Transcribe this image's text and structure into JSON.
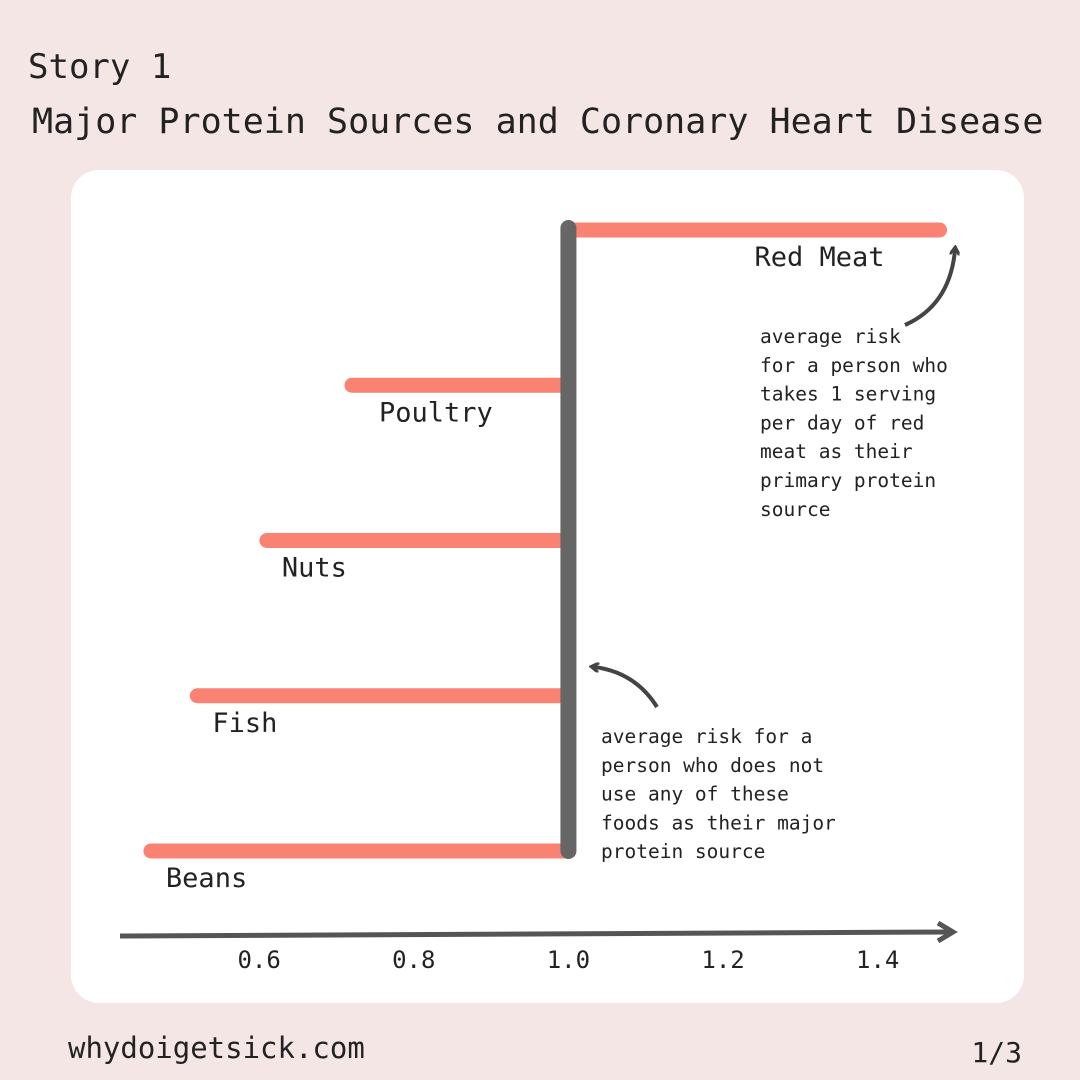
{
  "header": {
    "story": "Story 1"
  },
  "chart_data": {
    "type": "bar",
    "orientation": "horizontal",
    "title": "Major Protein Sources and Coronary Heart Disease",
    "categories": [
      "Red Meat",
      "Poultry",
      "Nuts",
      "Fish",
      "Beans"
    ],
    "values": [
      1.48,
      0.72,
      0.61,
      0.52,
      0.46
    ],
    "color": "#f98272",
    "reference": 1,
    "xlim": [
      0.42,
      1.5
    ],
    "xticks": [
      0.6,
      0.8,
      {
        "value": 1,
        "label": "1.0"
      },
      1.2,
      1.4
    ],
    "annotations": [
      {
        "lines": [
          "average risk",
          "for a person who",
          "takes 1 serving",
          "per day of red",
          "meat as their",
          "primary protein",
          "source"
        ]
      },
      {
        "lines": [
          "average risk for a",
          "person who does not",
          "use any of these",
          "foods as their major",
          "protein source"
        ]
      }
    ]
  },
  "footer": {
    "site": "whydoigetsick.com",
    "page": "1/3"
  }
}
